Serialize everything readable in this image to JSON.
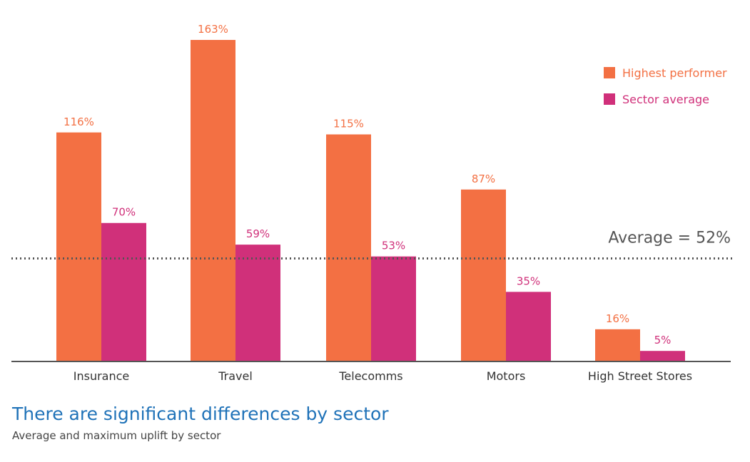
{
  "title": "There are significant differences by sector",
  "subtitle": "Average and maximum uplift by sector",
  "colors": {
    "highest": "#f37043",
    "average": "#d0307a",
    "axis": "#555555"
  },
  "chart_data": {
    "type": "bar",
    "categories": [
      "Insurance",
      "Travel",
      "Telecomms",
      "Motors",
      "High Street Stores"
    ],
    "series": [
      {
        "name": "Highest performer",
        "values": [
          116,
          163,
          115,
          87,
          16
        ],
        "labels": [
          "116%",
          "163%",
          "115%",
          "87%",
          "16%"
        ]
      },
      {
        "name": "Sector average",
        "values": [
          70,
          59,
          53,
          35,
          5
        ],
        "labels": [
          "70%",
          "59%",
          "53%",
          "35%",
          "5%"
        ]
      }
    ],
    "reference_line": {
      "value": 52,
      "label": "Average = 52%",
      "style": "dotted"
    },
    "ylim": [
      0,
      163
    ],
    "legend_position": "top-right",
    "grid": false
  }
}
